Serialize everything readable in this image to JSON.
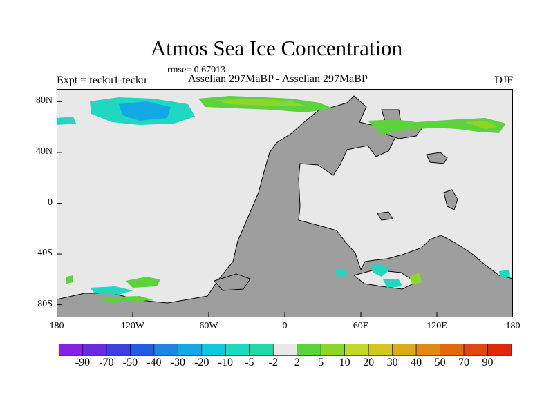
{
  "title": "Atmos Sea Ice Concentration",
  "rmse": "rmse= 0.67013",
  "expt": "Expt = tecku1-tecku",
  "experiments": "Asselian 297MaBP - Asselian 297MaBP",
  "season": "DJF",
  "map": {
    "projection": "cylindrical-equidistant",
    "lon_range": [
      -180,
      180
    ],
    "lat_range": [
      -90,
      90
    ],
    "land_color": "#9e9e9e",
    "ocean_color": "#e8e8e8",
    "y_ticks": [
      {
        "value": 80,
        "label": "80N"
      },
      {
        "value": 40,
        "label": "40N"
      },
      {
        "value": 0,
        "label": "0"
      },
      {
        "value": -40,
        "label": "40S"
      },
      {
        "value": -80,
        "label": "80S"
      }
    ],
    "x_ticks": [
      {
        "value": -180,
        "label": "180"
      },
      {
        "value": -120,
        "label": "120W"
      },
      {
        "value": -60,
        "label": "60W"
      },
      {
        "value": 0,
        "label": "0"
      },
      {
        "value": 60,
        "label": "60E"
      },
      {
        "value": 120,
        "label": "120E"
      },
      {
        "value": 180,
        "label": "180"
      }
    ]
  },
  "colorbar": {
    "labels": [
      "-90",
      "-70",
      "-50",
      "-40",
      "-30",
      "-20",
      "-10",
      "-5",
      "-2",
      "2",
      "5",
      "10",
      "20",
      "30",
      "40",
      "50",
      "70",
      "90"
    ],
    "colors": [
      "#8a1fe6",
      "#6a2be0",
      "#3d3ee0",
      "#1f5fe0",
      "#1f86e0",
      "#14a8e6",
      "#0fc8dc",
      "#1fd8c0",
      "#20d9a6",
      "#e8e8e8",
      "#5cd23c",
      "#8cd628",
      "#c0d82a",
      "#d4c81e",
      "#dcaa14",
      "#e08c14",
      "#e06a0f",
      "#e0470f",
      "#e0280f"
    ]
  }
}
